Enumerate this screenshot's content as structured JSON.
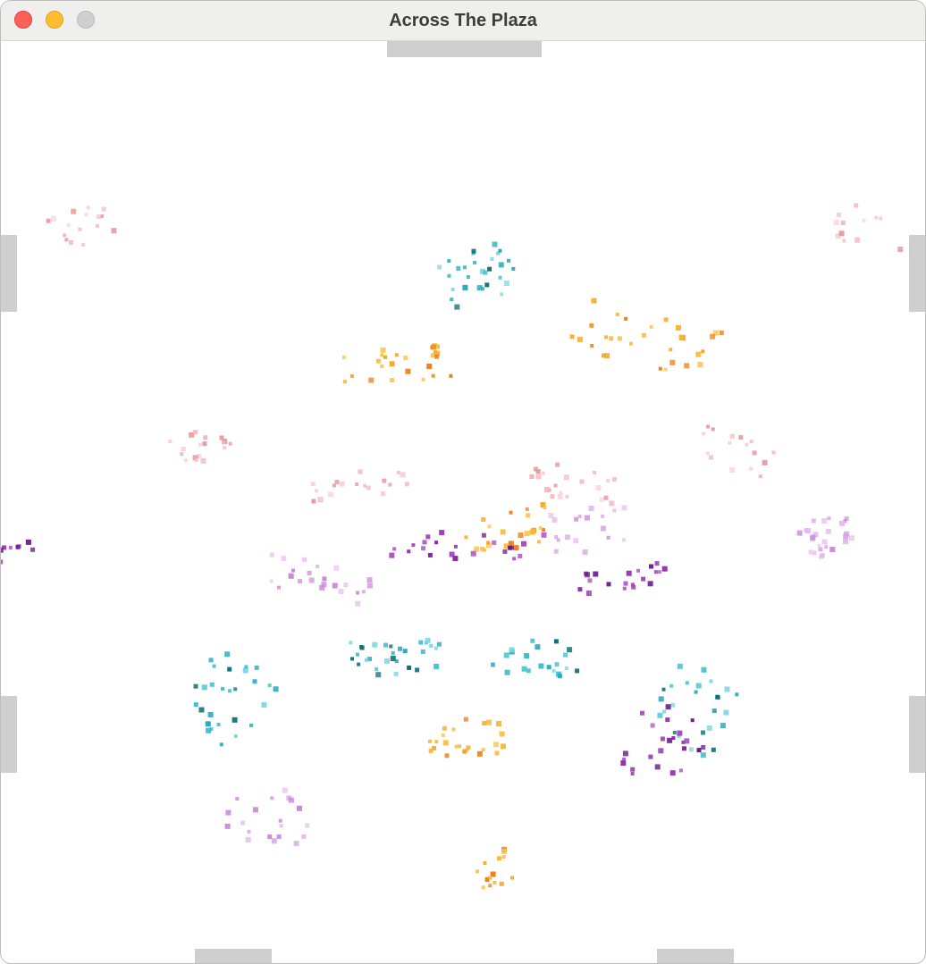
{
  "window": {
    "title": "Across The Plaza"
  },
  "colors": {
    "pink": "#f4b8bc",
    "lavender": "#d9a6e3",
    "purple": "#8e24aa",
    "orange": "#f59b1a",
    "cyan": "#3bbfd0",
    "teal": "#0e6f78",
    "gate": "#cfcfcf"
  },
  "gates": [
    "top",
    "left-upper",
    "right-upper",
    "left-lower",
    "right-lower",
    "bottom-left",
    "bottom-right"
  ],
  "crowds": [
    {
      "color": "pink",
      "count": 16
    },
    {
      "color": "pink",
      "count": 12
    },
    {
      "color": "pink",
      "count": 18
    },
    {
      "color": "pink",
      "count": 20
    },
    {
      "color": "pink",
      "count": 22
    },
    {
      "color": "pink",
      "count": 16
    },
    {
      "color": "orange",
      "count": 26
    },
    {
      "color": "orange",
      "count": 30
    },
    {
      "color": "orange",
      "count": 24
    },
    {
      "color": "orange",
      "count": 26
    },
    {
      "color": "orange",
      "count": 16
    },
    {
      "color": "cyan",
      "count": 30
    },
    {
      "color": "cyan",
      "count": 30
    },
    {
      "color": "cyan",
      "count": 22
    },
    {
      "color": "cyan",
      "count": 26
    },
    {
      "color": "cyan",
      "count": 28
    },
    {
      "color": "purple",
      "count": 24
    },
    {
      "color": "purple",
      "count": 20
    },
    {
      "color": "purple",
      "count": 24
    },
    {
      "color": "purple",
      "count": 14
    },
    {
      "color": "lavender",
      "count": 24
    },
    {
      "color": "lavender",
      "count": 18
    },
    {
      "color": "lavender",
      "count": 26
    },
    {
      "color": "lavender",
      "count": 20
    }
  ]
}
